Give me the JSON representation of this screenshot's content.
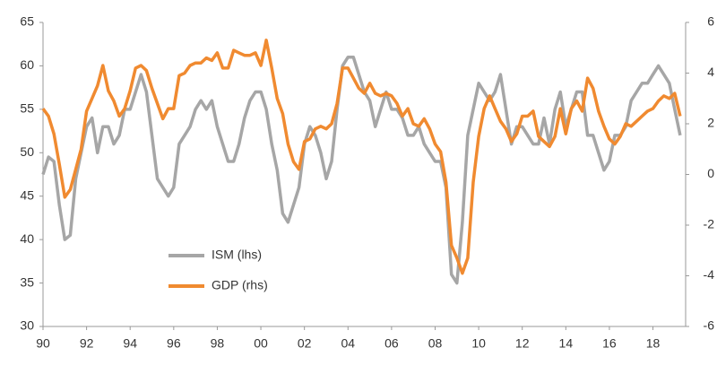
{
  "chart_data": {
    "type": "line",
    "x": [
      1990,
      1990.25,
      1990.5,
      1990.75,
      1991,
      1991.25,
      1991.5,
      1991.75,
      1992,
      1992.25,
      1992.5,
      1992.75,
      1993,
      1993.25,
      1993.5,
      1993.75,
      1994,
      1994.25,
      1994.5,
      1994.75,
      1995,
      1995.25,
      1995.5,
      1995.75,
      1996,
      1996.25,
      1996.5,
      1996.75,
      1997,
      1997.25,
      1997.5,
      1997.75,
      1998,
      1998.25,
      1998.5,
      1998.75,
      1999,
      1999.25,
      1999.5,
      1999.75,
      2000,
      2000.25,
      2000.5,
      2000.75,
      2001,
      2001.25,
      2001.5,
      2001.75,
      2002,
      2002.25,
      2002.5,
      2002.75,
      2003,
      2003.25,
      2003.5,
      2003.75,
      2004,
      2004.25,
      2004.5,
      2004.75,
      2005,
      2005.25,
      2005.5,
      2005.75,
      2006,
      2006.25,
      2006.5,
      2006.75,
      2007,
      2007.25,
      2007.5,
      2007.75,
      2008,
      2008.25,
      2008.5,
      2008.75,
      2009,
      2009.25,
      2009.5,
      2009.75,
      2010,
      2010.25,
      2010.5,
      2010.75,
      2011,
      2011.25,
      2011.5,
      2011.75,
      2012,
      2012.25,
      2012.5,
      2012.75,
      2013,
      2013.25,
      2013.5,
      2013.75,
      2014,
      2014.25,
      2014.5,
      2014.75,
      2015,
      2015.25,
      2015.5,
      2015.75,
      2016,
      2016.25,
      2016.5,
      2016.75,
      2017,
      2017.25,
      2017.5,
      2017.75,
      2018,
      2018.25,
      2018.5,
      2018.75,
      2019,
      2019.25
    ],
    "series": [
      {
        "name": "ISM (lhs)",
        "color": "#a6a6a6",
        "axis": "y",
        "values": [
          47.5,
          49.5,
          49,
          44,
          40,
          40.5,
          47,
          50,
          53,
          54,
          50,
          53,
          53,
          51,
          52,
          55,
          55,
          57,
          59,
          57,
          52,
          47,
          46,
          45,
          46,
          51,
          52,
          53,
          55,
          56,
          55,
          56,
          53,
          51,
          49,
          49,
          51,
          54,
          56,
          57,
          57,
          55,
          51,
          48,
          43,
          42,
          44,
          46,
          51,
          53,
          52,
          50,
          47,
          49,
          55,
          60,
          61,
          61,
          59,
          57,
          56,
          53,
          55,
          57,
          55,
          55,
          54,
          52,
          52,
          53,
          51,
          50,
          49,
          49,
          46,
          36,
          35,
          42,
          52,
          55,
          58,
          57,
          56,
          57,
          59,
          55,
          51,
          53,
          53,
          52,
          51,
          51,
          54,
          51,
          55,
          57,
          53,
          55,
          57,
          57,
          52,
          52,
          50,
          48,
          49,
          52,
          52,
          53,
          56,
          57,
          58,
          58,
          59,
          60,
          59,
          58,
          55,
          52
        ]
      },
      {
        "name": "GDP (rhs)",
        "color": "#f08a30",
        "axis": "y2",
        "values": [
          2.6,
          2.3,
          1.6,
          0.4,
          -0.9,
          -0.6,
          0.2,
          1.0,
          2.5,
          3.0,
          3.5,
          4.3,
          3.3,
          2.9,
          2.3,
          2.6,
          3.3,
          4.2,
          4.3,
          4.1,
          3.4,
          2.8,
          2.2,
          2.6,
          2.6,
          3.9,
          4.0,
          4.3,
          4.4,
          4.4,
          4.6,
          4.5,
          4.8,
          4.2,
          4.2,
          4.9,
          4.8,
          4.7,
          4.7,
          4.8,
          4.3,
          5.3,
          4.2,
          3.0,
          2.4,
          1.2,
          0.5,
          0.2,
          1.3,
          1.4,
          1.8,
          1.9,
          1.8,
          2.0,
          2.8,
          4.2,
          4.2,
          3.8,
          3.4,
          3.2,
          3.6,
          3.2,
          3.1,
          3.2,
          3.1,
          2.8,
          2.3,
          2.6,
          2.0,
          1.9,
          2.2,
          1.8,
          1.2,
          0.9,
          -0.3,
          -2.8,
          -3.3,
          -3.9,
          -3.3,
          -0.3,
          1.5,
          2.6,
          3.1,
          2.6,
          2.1,
          1.8,
          1.3,
          1.6,
          2.3,
          2.3,
          2.5,
          1.5,
          1.3,
          1.1,
          1.5,
          2.6,
          1.6,
          2.6,
          2.9,
          2.5,
          3.8,
          3.4,
          2.5,
          1.9,
          1.4,
          1.2,
          1.5,
          2.0,
          1.9,
          2.1,
          2.3,
          2.5,
          2.6,
          2.9,
          3.1,
          3.0,
          3.2,
          2.3
        ]
      }
    ],
    "xlim": [
      1990,
      2019.5
    ],
    "xticks": [
      {
        "value": 1990,
        "label": "90"
      },
      {
        "value": 1992,
        "label": "92"
      },
      {
        "value": 1994,
        "label": "94"
      },
      {
        "value": 1996,
        "label": "96"
      },
      {
        "value": 1998,
        "label": "98"
      },
      {
        "value": 2000,
        "label": "00"
      },
      {
        "value": 2002,
        "label": "02"
      },
      {
        "value": 2004,
        "label": "04"
      },
      {
        "value": 2006,
        "label": "06"
      },
      {
        "value": 2008,
        "label": "08"
      },
      {
        "value": 2010,
        "label": "10"
      },
      {
        "value": 2012,
        "label": "12"
      },
      {
        "value": 2014,
        "label": "14"
      },
      {
        "value": 2016,
        "label": "16"
      },
      {
        "value": 2018,
        "label": "18"
      }
    ],
    "ylim": [
      30,
      65
    ],
    "yticks": [
      30,
      35,
      40,
      45,
      50,
      55,
      60,
      65
    ],
    "y2lim": [
      -6,
      6
    ],
    "y2ticks": [
      -6,
      -4,
      -2,
      0,
      2,
      4,
      6
    ],
    "grid": false
  }
}
